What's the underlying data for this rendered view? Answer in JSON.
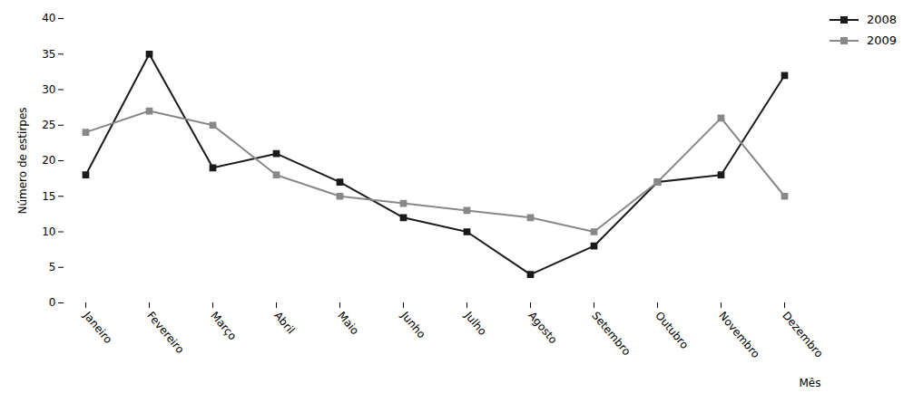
{
  "chart_data": {
    "type": "line",
    "categories": [
      "Janeiro",
      "Fevereiro",
      "Março",
      "Abril",
      "Maio",
      "Junho",
      "Julho",
      "Agosto",
      "Setembro",
      "Outubro",
      "Novembro",
      "Dezembro"
    ],
    "series": [
      {
        "name": "2008",
        "color": "#1a1a1a",
        "marker": "square",
        "values": [
          18,
          35,
          19,
          21,
          17,
          12,
          10,
          4,
          8,
          17,
          18,
          32
        ]
      },
      {
        "name": "2009",
        "color": "#888888",
        "marker": "square",
        "values": [
          24,
          27,
          25,
          18,
          15,
          14,
          13,
          12,
          10,
          17,
          26,
          15
        ]
      }
    ],
    "xlabel": "Mês",
    "ylabel": "Número de estirpes",
    "ylim": [
      0,
      40
    ],
    "yticks": [
      0,
      5,
      10,
      15,
      20,
      25,
      30,
      35,
      40
    ],
    "grid": false,
    "legend": "upper right"
  }
}
